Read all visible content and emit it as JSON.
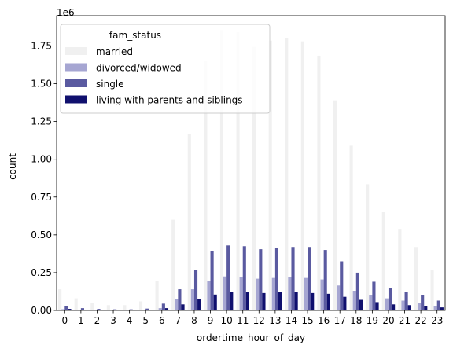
{
  "chart_data": {
    "type": "bar",
    "xlabel": "ordertime_hour_of_day",
    "ylabel": "count",
    "offset_label": "1e6",
    "ylim": [
      0,
      1950000
    ],
    "yticks": [
      0,
      250000,
      500000,
      750000,
      1000000,
      1250000,
      1500000,
      1750000
    ],
    "ytick_labels": [
      "0.00",
      "0.25",
      "0.50",
      "0.75",
      "1.00",
      "1.25",
      "1.50",
      "1.75"
    ],
    "categories": [
      "0",
      "1",
      "2",
      "3",
      "4",
      "5",
      "6",
      "7",
      "8",
      "9",
      "10",
      "11",
      "12",
      "13",
      "14",
      "15",
      "16",
      "17",
      "18",
      "19",
      "20",
      "21",
      "22",
      "23"
    ],
    "legend": {
      "title": "fam_status",
      "placement": "upper-left"
    },
    "series": [
      {
        "name": "married",
        "color": "#f0f0f0",
        "values": [
          140000,
          80000,
          50000,
          35000,
          35000,
          60000,
          195000,
          600000,
          1165000,
          1650000,
          1855000,
          1840000,
          1745000,
          1785000,
          1800000,
          1780000,
          1685000,
          1390000,
          1090000,
          835000,
          650000,
          535000,
          420000,
          265000
        ]
      },
      {
        "name": "divorced/widowed",
        "color": "#a6a6d2",
        "values": [
          8000,
          5000,
          4000,
          3000,
          3000,
          5000,
          15000,
          75000,
          140000,
          195000,
          225000,
          220000,
          210000,
          215000,
          220000,
          215000,
          205000,
          165000,
          130000,
          100000,
          80000,
          65000,
          50000,
          30000
        ]
      },
      {
        "name": "single",
        "color": "#5a5aa0",
        "values": [
          30000,
          15000,
          10000,
          7000,
          7000,
          12000,
          45000,
          140000,
          270000,
          390000,
          430000,
          425000,
          405000,
          415000,
          420000,
          420000,
          400000,
          325000,
          250000,
          190000,
          150000,
          120000,
          100000,
          65000
        ]
      },
      {
        "name": "living with parents and siblings",
        "color": "#10106e",
        "values": [
          10000,
          5000,
          3000,
          2000,
          2000,
          4000,
          15000,
          40000,
          75000,
          105000,
          120000,
          120000,
          115000,
          120000,
          120000,
          115000,
          110000,
          90000,
          70000,
          55000,
          40000,
          35000,
          30000,
          20000
        ]
      }
    ]
  }
}
